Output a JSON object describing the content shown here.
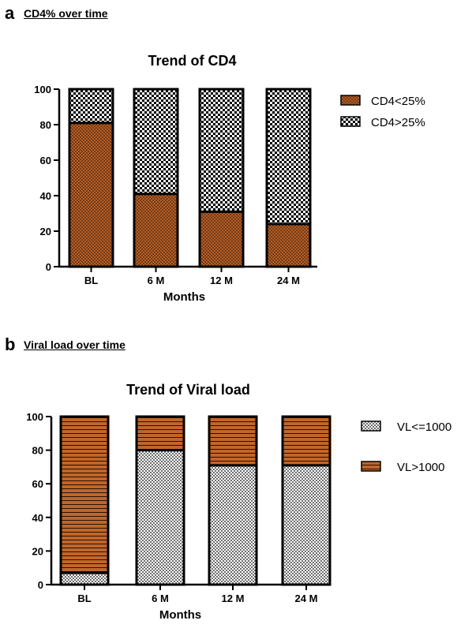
{
  "panels": [
    {
      "letter": "a",
      "caption": "CD4% over time"
    },
    {
      "letter": "b",
      "caption": "Viral load over time"
    }
  ],
  "colors": {
    "brown": "#c0662a",
    "bar_outline": "#000000"
  },
  "chart_data": [
    {
      "type": "bar",
      "stacked": true,
      "title": "Trend of CD4",
      "xlabel": "Months",
      "ylabel": "",
      "ylim": [
        0,
        100
      ],
      "yticks": [
        0,
        20,
        40,
        60,
        80,
        100
      ],
      "categories": [
        "BL",
        "6 M",
        "12 M",
        "24 M"
      ],
      "series": [
        {
          "name": "CD4<25%",
          "values": [
            81,
            41,
            31,
            24
          ],
          "pattern": "brown-crosshatch"
        },
        {
          "name": "CD4>25%",
          "values": [
            19,
            59,
            69,
            76
          ],
          "pattern": "checkerboard"
        }
      ],
      "legend": "right"
    },
    {
      "type": "bar",
      "stacked": true,
      "title": "Trend of Viral  load",
      "xlabel": "Months",
      "ylabel": "",
      "ylim": [
        0,
        100
      ],
      "yticks": [
        0,
        20,
        40,
        60,
        80,
        100
      ],
      "categories": [
        "BL",
        "6 M",
        "12 M",
        "24 M"
      ],
      "series": [
        {
          "name": "VL<=1000",
          "values": [
            7,
            80,
            71,
            71
          ],
          "pattern": "fine-checkerboard"
        },
        {
          "name": "VL>1000",
          "values": [
            93,
            20,
            29,
            29
          ],
          "pattern": "brown-stripes"
        }
      ],
      "legend": "right"
    }
  ]
}
